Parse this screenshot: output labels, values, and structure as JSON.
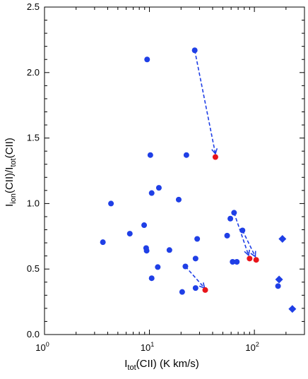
{
  "chart_data": {
    "type": "scatter",
    "title": "",
    "xlabel": {
      "main": "I",
      "sub": "tot",
      "rest": "(CII) (K km/s)"
    },
    "ylabel": {
      "main": "I",
      "sub1": "ion",
      "mid": "(CII)/I",
      "sub2": "tot",
      "rest": "(CII)"
    },
    "x_scale": "log",
    "xlim": [
      1,
      300
    ],
    "ylim": [
      0,
      2.5
    ],
    "x_ticks": [
      {
        "value": 1,
        "label_base": "10",
        "label_exp": "0"
      },
      {
        "value": 10,
        "label_base": "10",
        "label_exp": "1"
      },
      {
        "value": 100,
        "label_base": "10",
        "label_exp": "2"
      }
    ],
    "y_ticks": [
      {
        "value": 0,
        "label": "0.0"
      },
      {
        "value": 0.5,
        "label": "0.5"
      },
      {
        "value": 1.0,
        "label": "1.0"
      },
      {
        "value": 1.5,
        "label": "1.5"
      },
      {
        "value": 2.0,
        "label": "2.0"
      },
      {
        "value": 2.5,
        "label": "2.5"
      }
    ],
    "grid": false,
    "colors": {
      "blue": "#1f3fe6",
      "red": "#e8141a"
    },
    "series": [
      {
        "marker": "circle",
        "color": "#1f3fe6",
        "points": [
          [
            9.5,
            2.1
          ],
          [
            27.0,
            2.17
          ],
          [
            10.2,
            1.37
          ],
          [
            22.5,
            1.37
          ],
          [
            12.3,
            1.12
          ],
          [
            10.5,
            1.08
          ],
          [
            19.0,
            1.03
          ],
          [
            4.3,
            1.0
          ],
          [
            8.9,
            0.835
          ],
          [
            6.5,
            0.77
          ],
          [
            3.6,
            0.705
          ],
          [
            9.3,
            0.66
          ],
          [
            9.4,
            0.64
          ],
          [
            15.5,
            0.645
          ],
          [
            12.0,
            0.515
          ],
          [
            10.5,
            0.43
          ],
          [
            22.0,
            0.52
          ],
          [
            27.5,
            0.58
          ],
          [
            28.5,
            0.73
          ],
          [
            20.5,
            0.325
          ],
          [
            27.5,
            0.355
          ],
          [
            64.0,
            0.93
          ],
          [
            59.0,
            0.885
          ],
          [
            77.0,
            0.795
          ],
          [
            55.0,
            0.755
          ],
          [
            62.0,
            0.555
          ],
          [
            68.0,
            0.555
          ],
          [
            168.0,
            0.37
          ]
        ]
      },
      {
        "marker": "diamond",
        "color": "#1f3fe6",
        "points": [
          [
            185.0,
            0.73
          ],
          [
            172.0,
            0.42
          ],
          [
            230.0,
            0.195
          ]
        ]
      },
      {
        "marker": "circle",
        "color": "#e8141a",
        "points": [
          [
            42.5,
            1.355
          ],
          [
            34.0,
            0.34
          ],
          [
            90.0,
            0.58
          ],
          [
            104.0,
            0.57
          ]
        ]
      }
    ],
    "arrows": [
      {
        "from": [
          27.0,
          2.17
        ],
        "to": [
          42.5,
          1.38
        ]
      },
      {
        "from": [
          22.0,
          0.52
        ],
        "to": [
          33.5,
          0.355
        ]
      },
      {
        "from": [
          64.0,
          0.93
        ],
        "to": [
          88.0,
          0.605
        ]
      },
      {
        "from": [
          77.0,
          0.795
        ],
        "to": [
          102.0,
          0.595
        ]
      }
    ]
  }
}
